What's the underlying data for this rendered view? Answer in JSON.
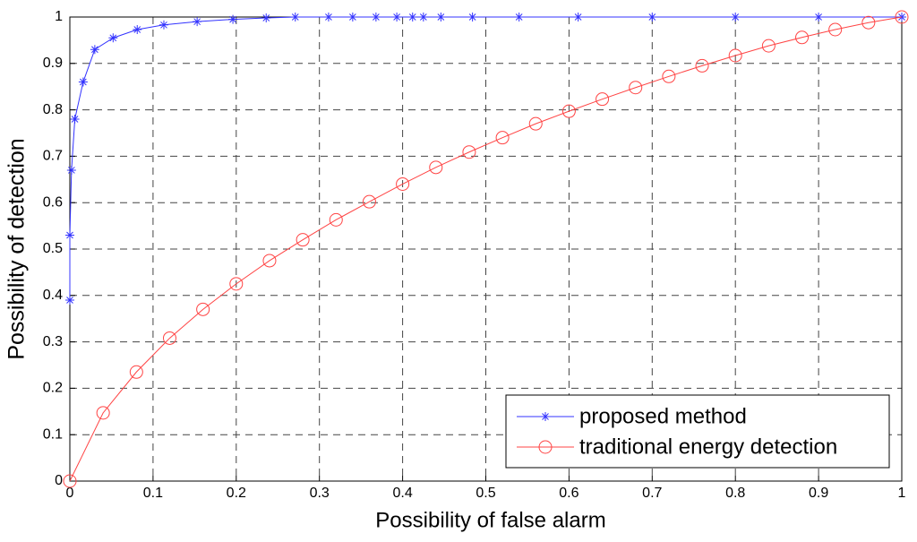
{
  "chart_data": {
    "type": "line",
    "x_label": "Possibility of false alarm",
    "y_label": "Possibility of detection",
    "xlim": [
      0,
      1
    ],
    "ylim": [
      0,
      1
    ],
    "xticks": [
      0,
      0.1,
      0.2,
      0.3,
      0.4,
      0.5,
      0.6,
      0.7,
      0.8,
      0.9,
      1
    ],
    "yticks": [
      0,
      0.1,
      0.2,
      0.3,
      0.4,
      0.5,
      0.6,
      0.7,
      0.8,
      0.9,
      1
    ],
    "grid": true,
    "legend": "lower right",
    "series": [
      {
        "name": "proposed method",
        "color": "#3333ff",
        "marker": "star",
        "x": [
          0,
          0,
          0.002,
          0.006,
          0.016,
          0.03,
          0.052,
          0.081,
          0.113,
          0.153,
          0.196,
          0.236,
          0.271,
          0.311,
          0.34,
          0.368,
          0.393,
          0.412,
          0.425,
          0.446,
          0.484,
          0.54,
          0.611,
          0.7,
          0.8,
          0.9,
          1
        ],
        "values": [
          0.39,
          0.53,
          0.67,
          0.78,
          0.86,
          0.93,
          0.955,
          0.973,
          0.983,
          0.99,
          0.995,
          0.998,
          1,
          1,
          1,
          1,
          1,
          1,
          1,
          1,
          1,
          1,
          1,
          1,
          1,
          1,
          1
        ]
      },
      {
        "name": "traditional energy detection",
        "color": "#ff4444",
        "marker": "circle",
        "x": [
          0,
          0.04,
          0.08,
          0.12,
          0.16,
          0.2,
          0.24,
          0.28,
          0.32,
          0.36,
          0.4,
          0.44,
          0.48,
          0.52,
          0.56,
          0.6,
          0.64,
          0.68,
          0.72,
          0.76,
          0.8,
          0.84,
          0.88,
          0.92,
          0.96,
          1
        ],
        "values": [
          0,
          0.147,
          0.235,
          0.308,
          0.37,
          0.425,
          0.475,
          0.52,
          0.563,
          0.602,
          0.64,
          0.676,
          0.709,
          0.74,
          0.77,
          0.797,
          0.823,
          0.848,
          0.872,
          0.895,
          0.917,
          0.938,
          0.956,
          0.973,
          0.988,
          1
        ]
      }
    ]
  }
}
